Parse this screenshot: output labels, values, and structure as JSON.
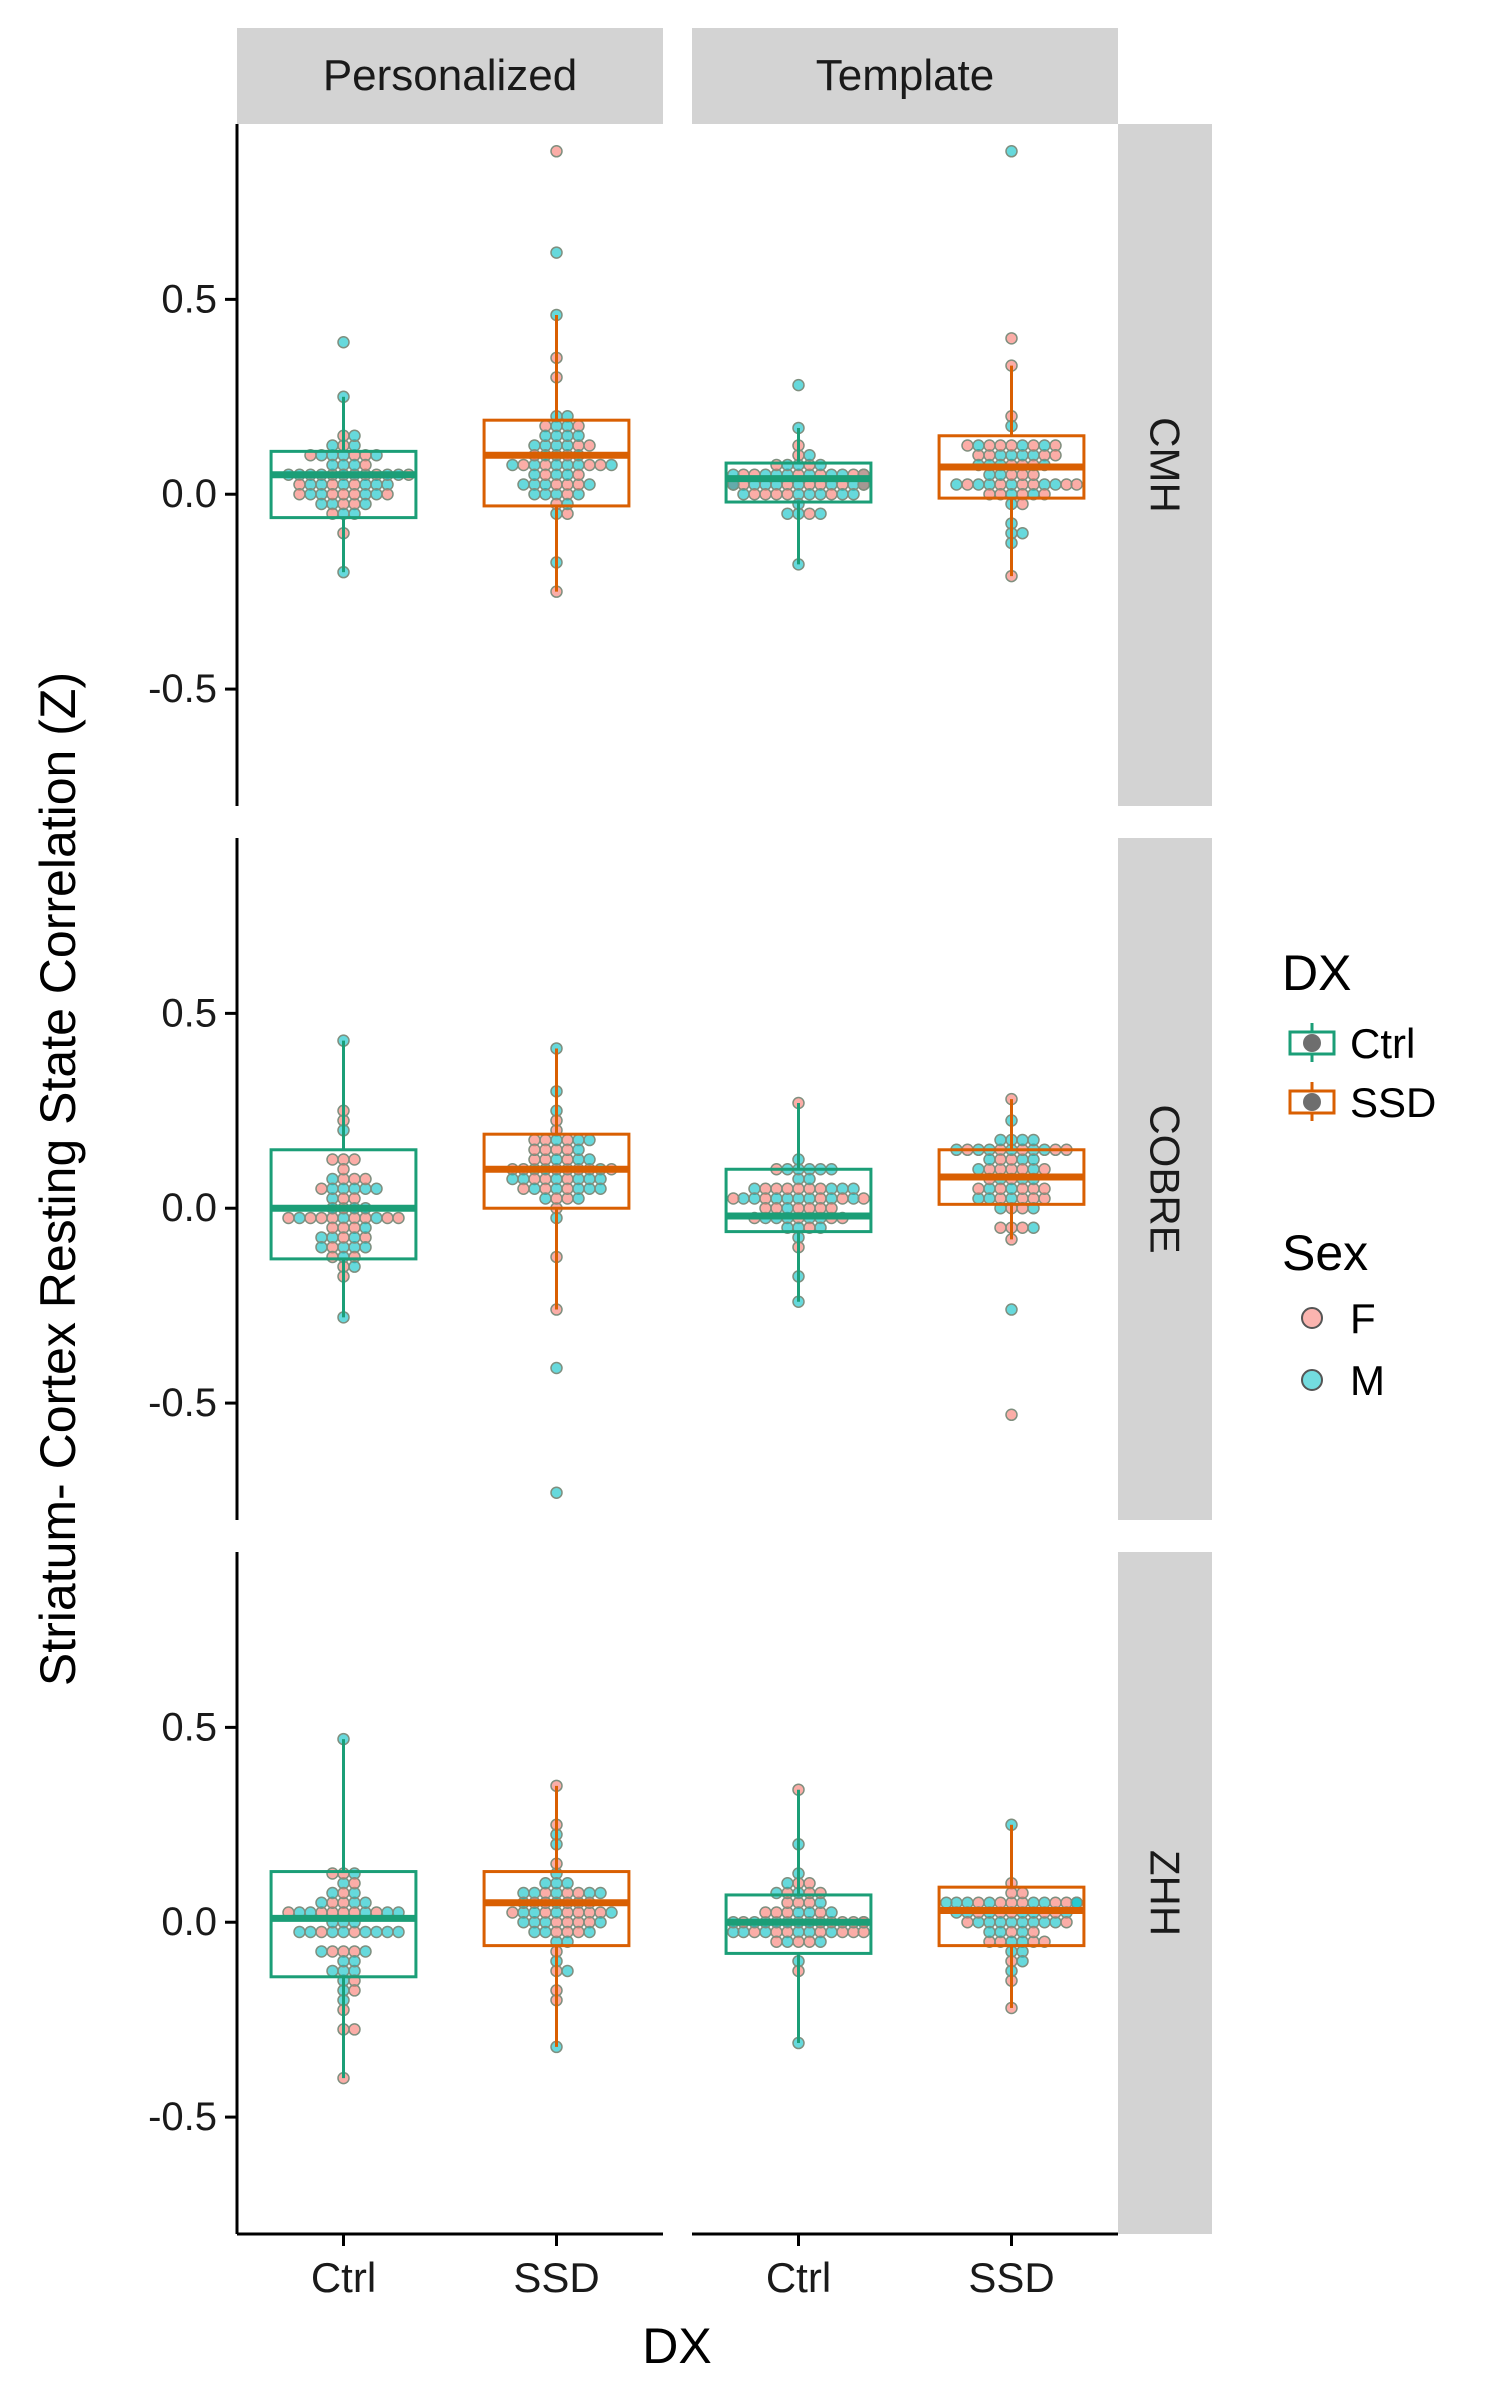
{
  "chart_data": {
    "type": "boxplot",
    "facet_columns": [
      "Personalized",
      "Template"
    ],
    "facet_rows": [
      "CMH",
      "COBRE",
      "ZHH"
    ],
    "x_axis": {
      "label": "DX",
      "categories": [
        "Ctrl",
        "SSD"
      ]
    },
    "y_axis": {
      "label": "Striatum- Cortex Resting State Correlation (Z)",
      "ylim": [
        -0.8,
        0.95
      ],
      "ticks": [
        -0.5,
        0.0,
        0.5
      ],
      "tick_labels": [
        "-0.5",
        "0.0",
        "0.5"
      ]
    },
    "legend": [
      {
        "title": "DX",
        "entries": [
          {
            "label": "Ctrl",
            "color": "#1b9e77"
          },
          {
            "label": "SSD",
            "color": "#d95f02"
          }
        ]
      },
      {
        "title": "Sex",
        "entries": [
          {
            "label": "F",
            "color": "#f8766d"
          },
          {
            "label": "M",
            "color": "#00bfc4"
          }
        ]
      }
    ],
    "colors": {
      "Ctrl": "#1b9e77",
      "SSD": "#d95f02",
      "F": "#f8766d",
      "M": "#00bfc4",
      "strip": "#d3d3d3"
    },
    "panels": [
      {
        "row": "CMH",
        "col": "Personalized",
        "boxes": [
          {
            "dx": "Ctrl",
            "lower_whisker": -0.2,
            "q1": -0.06,
            "median": 0.05,
            "q3": 0.11,
            "upper_whisker": 0.25,
            "outliers": [
              0.39
            ]
          },
          {
            "dx": "SSD",
            "lower_whisker": -0.25,
            "q1": -0.03,
            "median": 0.1,
            "q3": 0.19,
            "upper_whisker": 0.46,
            "outliers": [
              0.62,
              0.88
            ]
          }
        ]
      },
      {
        "row": "CMH",
        "col": "Template",
        "boxes": [
          {
            "dx": "Ctrl",
            "lower_whisker": -0.18,
            "q1": -0.02,
            "median": 0.04,
            "q3": 0.08,
            "upper_whisker": 0.17,
            "outliers": [
              0.28
            ]
          },
          {
            "dx": "SSD",
            "lower_whisker": -0.21,
            "q1": -0.01,
            "median": 0.07,
            "q3": 0.15,
            "upper_whisker": 0.33,
            "outliers": [
              0.4,
              0.88
            ]
          }
        ]
      },
      {
        "row": "COBRE",
        "col": "Personalized",
        "boxes": [
          {
            "dx": "Ctrl",
            "lower_whisker": -0.28,
            "q1": -0.13,
            "median": 0.0,
            "q3": 0.15,
            "upper_whisker": 0.43,
            "outliers": []
          },
          {
            "dx": "SSD",
            "lower_whisker": -0.26,
            "q1": 0.0,
            "median": 0.1,
            "q3": 0.19,
            "upper_whisker": 0.41,
            "outliers": [
              -0.41,
              -0.73
            ]
          }
        ]
      },
      {
        "row": "COBRE",
        "col": "Template",
        "boxes": [
          {
            "dx": "Ctrl",
            "lower_whisker": -0.24,
            "q1": -0.06,
            "median": -0.02,
            "q3": 0.1,
            "upper_whisker": 0.27,
            "outliers": []
          },
          {
            "dx": "SSD",
            "lower_whisker": -0.08,
            "q1": 0.01,
            "median": 0.08,
            "q3": 0.15,
            "upper_whisker": 0.28,
            "outliers": [
              -0.26,
              -0.53
            ]
          }
        ]
      },
      {
        "row": "ZHH",
        "col": "Personalized",
        "boxes": [
          {
            "dx": "Ctrl",
            "lower_whisker": -0.4,
            "q1": -0.14,
            "median": 0.01,
            "q3": 0.13,
            "upper_whisker": 0.47,
            "outliers": []
          },
          {
            "dx": "SSD",
            "lower_whisker": -0.32,
            "q1": -0.06,
            "median": 0.05,
            "q3": 0.13,
            "upper_whisker": 0.35,
            "outliers": []
          }
        ]
      },
      {
        "row": "ZHH",
        "col": "Template",
        "boxes": [
          {
            "dx": "Ctrl",
            "lower_whisker": -0.31,
            "q1": -0.08,
            "median": 0.0,
            "q3": 0.07,
            "upper_whisker": 0.34,
            "outliers": []
          },
          {
            "dx": "SSD",
            "lower_whisker": -0.22,
            "q1": -0.06,
            "median": 0.03,
            "q3": 0.09,
            "upper_whisker": 0.25,
            "outliers": []
          }
        ]
      }
    ]
  }
}
